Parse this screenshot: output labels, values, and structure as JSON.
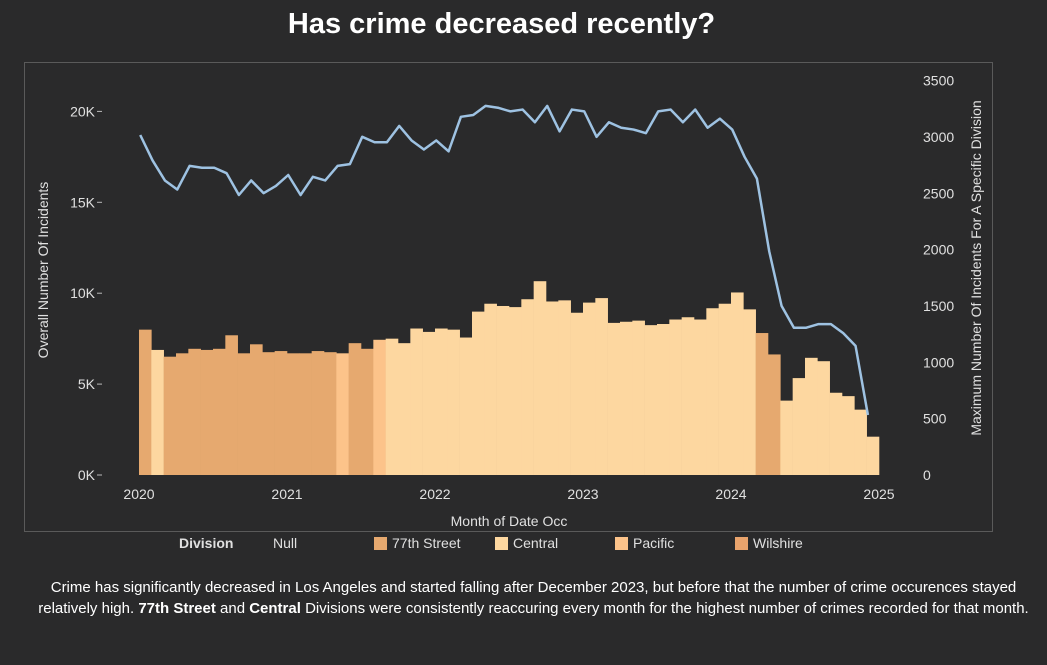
{
  "title": "Has crime decreased recently?",
  "caption": {
    "part1": "Crime has significantly decreased in Los Angeles and started falling after December 2023, but before that the number of crime occurences stayed relatively high. ",
    "bold1": "77th Street",
    "part2": " and ",
    "bold2": "Central",
    "part3": " Divisions were consistently reaccuring every month for the highest number of crimes recorded for that month."
  },
  "legend": {
    "title": "Division",
    "items": [
      {
        "label": "Null",
        "color": null
      },
      {
        "label": "77th Street",
        "color": "#e6a96f"
      },
      {
        "label": "Central",
        "color": "#fdd7a0"
      },
      {
        "label": "Pacific",
        "color": "#fcc38a"
      },
      {
        "label": "Wilshire",
        "color": "#e9a36c"
      }
    ]
  },
  "chart_data": {
    "type": "bar+line",
    "xlabel": "Month of Date Occ",
    "ylabel": "Overall Number Of Incidents",
    "y2label": "Maximum Number Of Incidents For A Specific Division",
    "x_ticks": [
      "2020",
      "2021",
      "2022",
      "2023",
      "2024",
      "2025"
    ],
    "y_ticks": [
      "0K",
      "5K",
      "10K",
      "15K",
      "20K"
    ],
    "y2_ticks": [
      "0",
      "500",
      "1000",
      "1500",
      "2000",
      "2500",
      "3000",
      "3500"
    ],
    "ylim": [
      0,
      22000
    ],
    "y2lim": [
      0,
      3550
    ],
    "months": [
      "2020-01",
      "2020-02",
      "2020-03",
      "2020-04",
      "2020-05",
      "2020-06",
      "2020-07",
      "2020-08",
      "2020-09",
      "2020-10",
      "2020-11",
      "2020-12",
      "2021-01",
      "2021-02",
      "2021-03",
      "2021-04",
      "2021-05",
      "2021-06",
      "2021-07",
      "2021-08",
      "2021-09",
      "2021-10",
      "2021-11",
      "2021-12",
      "2022-01",
      "2022-02",
      "2022-03",
      "2022-04",
      "2022-05",
      "2022-06",
      "2022-07",
      "2022-08",
      "2022-09",
      "2022-10",
      "2022-11",
      "2022-12",
      "2023-01",
      "2023-02",
      "2023-03",
      "2023-04",
      "2023-05",
      "2023-06",
      "2023-07",
      "2023-08",
      "2023-09",
      "2023-10",
      "2023-11",
      "2023-12",
      "2024-01",
      "2024-02",
      "2024-03",
      "2024-04",
      "2024-05",
      "2024-06",
      "2024-07",
      "2024-08",
      "2024-09",
      "2024-10",
      "2024-11",
      "2024-12"
    ],
    "overall_incidents": [
      18700,
      17300,
      16200,
      15700,
      17000,
      16900,
      16900,
      16600,
      15400,
      16200,
      15500,
      15900,
      16500,
      15400,
      16400,
      16200,
      17000,
      17100,
      18600,
      18300,
      18300,
      19200,
      18400,
      17900,
      18400,
      17800,
      19700,
      19800,
      20300,
      20200,
      20000,
      20100,
      19400,
      20300,
      18900,
      20100,
      20000,
      18600,
      19400,
      19100,
      19000,
      18800,
      20000,
      20100,
      19400,
      20100,
      19100,
      19600,
      19000,
      17500,
      16300,
      12300,
      9300,
      8100,
      8100,
      8300,
      8300,
      7800,
      7100,
      3300
    ],
    "max_division_incidents": [
      1290,
      1110,
      1050,
      1080,
      1120,
      1110,
      1120,
      1240,
      1080,
      1160,
      1090,
      1100,
      1080,
      1080,
      1100,
      1090,
      1080,
      1170,
      1120,
      1200,
      1210,
      1170,
      1300,
      1270,
      1300,
      1290,
      1220,
      1450,
      1520,
      1500,
      1490,
      1560,
      1720,
      1540,
      1550,
      1440,
      1530,
      1570,
      1350,
      1360,
      1370,
      1330,
      1340,
      1380,
      1400,
      1380,
      1480,
      1520,
      1620,
      1470,
      1260,
      1070,
      660,
      860,
      1040,
      1010,
      730,
      700,
      580,
      340
    ],
    "bar_division": [
      "77th Street",
      "Central",
      "77th Street",
      "77th Street",
      "77th Street",
      "77th Street",
      "77th Street",
      "77th Street",
      "77th Street",
      "77th Street",
      "77th Street",
      "77th Street",
      "77th Street",
      "77th Street",
      "77th Street",
      "77th Street",
      "Pacific",
      "77th Street",
      "77th Street",
      "Pacific",
      "Central",
      "Central",
      "Central",
      "Central",
      "Central",
      "Central",
      "Central",
      "Central",
      "Central",
      "Central",
      "Central",
      "Central",
      "Central",
      "Central",
      "Central",
      "Central",
      "Central",
      "Central",
      "Central",
      "Central",
      "Central",
      "Central",
      "Central",
      "Central",
      "Central",
      "Central",
      "Central",
      "Central",
      "Central",
      "Central",
      "77th Street",
      "77th Street",
      "Central",
      "Central",
      "Central",
      "Central",
      "Central",
      "Central",
      "Central",
      "Central"
    ]
  }
}
